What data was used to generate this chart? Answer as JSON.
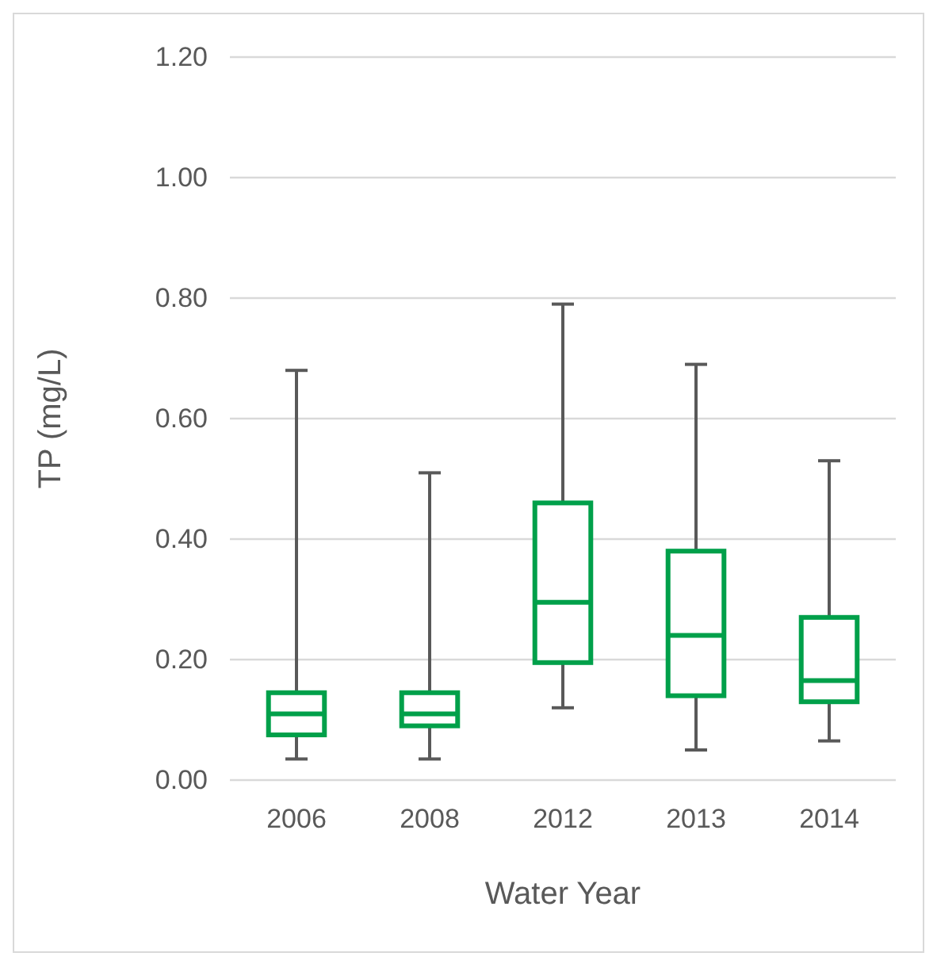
{
  "chart_data": {
    "type": "box",
    "xlabel": "Water Year",
    "ylabel": "TP (mg/L)",
    "categories": [
      "2006",
      "2008",
      "2012",
      "2013",
      "2014"
    ],
    "series": [
      {
        "color": "#00a04a",
        "boxes": [
          {
            "low": 0.035,
            "q1": 0.075,
            "median": 0.11,
            "q3": 0.145,
            "high": 0.68
          },
          {
            "low": 0.035,
            "q1": 0.09,
            "median": 0.11,
            "q3": 0.145,
            "high": 0.51
          },
          {
            "low": 0.12,
            "q1": 0.195,
            "median": 0.295,
            "q3": 0.46,
            "high": 0.79
          },
          {
            "low": 0.05,
            "q1": 0.14,
            "median": 0.24,
            "q3": 0.38,
            "high": 0.69
          },
          {
            "low": 0.065,
            "q1": 0.13,
            "median": 0.165,
            "q3": 0.27,
            "high": 0.53
          }
        ]
      }
    ],
    "ylim": [
      0,
      1.2
    ],
    "yticks": [
      {
        "value": 0,
        "label": "0.00"
      },
      {
        "value": 0.2,
        "label": "0.20"
      },
      {
        "value": 0.4,
        "label": "0.40"
      },
      {
        "value": 0.6,
        "label": "0.60"
      },
      {
        "value": 0.8,
        "label": "0.80"
      },
      {
        "value": 1.0,
        "label": "1.00"
      },
      {
        "value": 1.2,
        "label": "1.20"
      }
    ],
    "grid": "y"
  }
}
